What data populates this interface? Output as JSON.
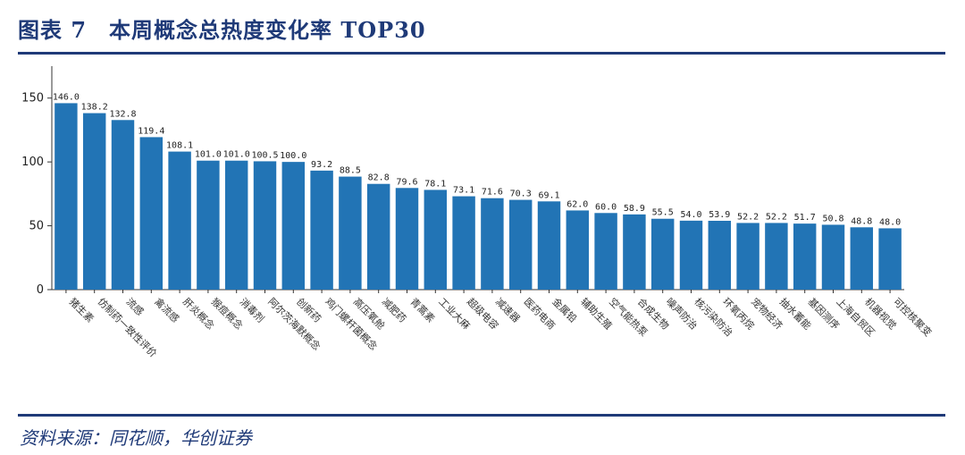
{
  "header": {
    "title": "图表 7　本周概念总热度变化率 TOP30"
  },
  "footer": {
    "source": "资料来源：同花顺，华创证券"
  },
  "chart_data": {
    "type": "bar",
    "title": "图表 7　本周概念总热度变化率 TOP30",
    "xlabel": "",
    "ylabel": "",
    "ylim": [
      0,
      175
    ],
    "yticks": [
      0,
      50,
      100,
      150
    ],
    "grid": false,
    "color": "#2274b5",
    "categories": [
      "猪生素",
      "仿制药一致性评价",
      "流感",
      "禽流感",
      "肝炎概念",
      "猴痘概念",
      "消毒剂",
      "阿尔茨海默概念",
      "创新药",
      "鸡门螺杆菌概念",
      "高压氧舱",
      "减肥药",
      "青蒿素",
      "工业大麻",
      "超级电容",
      "减速器",
      "医药电商",
      "金属铅",
      "辅助生殖",
      "空气能热泵",
      "合成生物",
      "噪声防治",
      "核污染防治",
      "环氧丙烷",
      "宠物经济",
      "抽水蓄能",
      "基因测序",
      "上海自贸区",
      "机器视觉",
      "可控核聚变"
    ],
    "values": [
      146.0,
      138.2,
      132.8,
      119.4,
      108.1,
      101.0,
      101.0,
      100.5,
      100.0,
      93.2,
      88.5,
      82.8,
      79.6,
      78.1,
      73.1,
      71.6,
      70.3,
      69.1,
      62.0,
      60.0,
      58.9,
      55.5,
      54.0,
      53.9,
      52.2,
      52.2,
      51.7,
      50.8,
      48.8,
      48.0
    ],
    "value_labels": [
      "146.0",
      "138.2",
      "132.8",
      "119.4",
      "108.1",
      "101.0",
      "101.0",
      "100.5",
      "100.0",
      "93.2",
      "88.5",
      "82.8",
      "79.6",
      "78.1",
      "73.1",
      "71.6",
      "70.3",
      "69.1",
      "62.0",
      "60.0",
      "58.9",
      "55.5",
      "54.0",
      "53.9",
      "52.2",
      "52.2",
      "51.7",
      "50.8",
      "48.8",
      "48.0"
    ]
  }
}
